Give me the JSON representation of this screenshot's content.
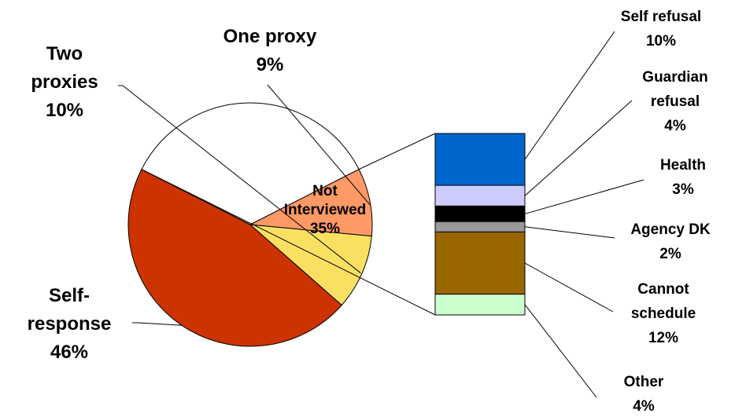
{
  "chart_data": {
    "type": "pie",
    "title": "",
    "pie": {
      "slices": [
        {
          "name": "Not Interviewed",
          "lines": [
            "Not",
            "Interviewed"
          ],
          "value": 35,
          "value_label": "35%",
          "color": "#ffffff"
        },
        {
          "name": "Self-response",
          "lines": [
            "Self-",
            "response"
          ],
          "value": 46,
          "value_label": "46%",
          "color": "#cc3300"
        },
        {
          "name": "Two proxies",
          "lines": [
            "Two",
            "proxies"
          ],
          "value": 10,
          "value_label": "10%",
          "color": "#fae062"
        },
        {
          "name": "One proxy",
          "lines": [
            "One proxy"
          ],
          "value": 9,
          "value_label": "9%",
          "color": "#ff9966"
        }
      ]
    },
    "breakdown": {
      "of": "Not Interviewed",
      "segments": [
        {
          "name": "Self refusal",
          "lines": [
            "Self refusal"
          ],
          "value": 10,
          "value_label": "10%",
          "color": "#0066cc"
        },
        {
          "name": "Guardian refusal",
          "lines": [
            "Guardian",
            "refusal"
          ],
          "value": 4,
          "value_label": "4%",
          "color": "#ccccff"
        },
        {
          "name": "Health",
          "lines": [
            "Health"
          ],
          "value": 3,
          "value_label": "3%",
          "color": "#000000"
        },
        {
          "name": "Agency DK",
          "lines": [
            "Agency DK"
          ],
          "value": 2,
          "value_label": "2%",
          "color": "#999999"
        },
        {
          "name": "Cannot schedule",
          "lines": [
            "Cannot",
            "schedule"
          ],
          "value": 12,
          "value_label": "12%",
          "color": "#996600"
        },
        {
          "name": "Other",
          "lines": [
            "Other"
          ],
          "value": 4,
          "value_label": "4%",
          "color": "#ccffcc"
        }
      ]
    }
  }
}
